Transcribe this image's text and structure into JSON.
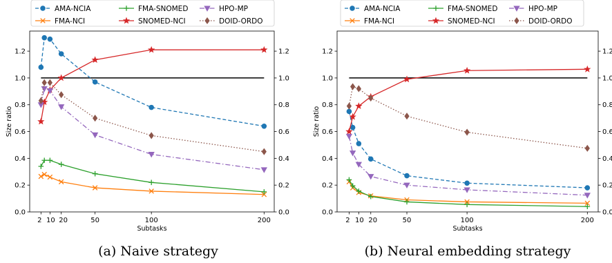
{
  "chart_data": [
    {
      "type": "line",
      "caption": "(a) Naive strategy",
      "xlabel": "Subtasks",
      "ylabel": "Size ratio",
      "xticks": [
        2,
        10,
        20,
        50,
        100,
        200
      ],
      "yticks": [
        "0.0",
        "0.2",
        "0.4",
        "0.6",
        "0.8",
        "1.0",
        "1.2"
      ],
      "xlim": [
        -8,
        209
      ],
      "ylim": [
        0.0,
        1.35
      ],
      "grid": false,
      "reference_line": 1.0,
      "legend_position": "top, outside",
      "x": [
        2,
        5,
        10,
        20,
        50,
        100,
        200
      ],
      "series": [
        {
          "name": "AMA-NCIA",
          "values": [
            1.08,
            1.3,
            1.29,
            1.18,
            0.97,
            0.78,
            0.64
          ]
        },
        {
          "name": "FMA-NCI",
          "values": [
            0.265,
            0.28,
            0.26,
            0.225,
            0.18,
            0.155,
            0.13
          ]
        },
        {
          "name": "FMA-SNOMED",
          "values": [
            0.34,
            0.385,
            0.385,
            0.355,
            0.285,
            0.22,
            0.15
          ]
        },
        {
          "name": "SNOMED-NCI",
          "values": [
            0.675,
            0.82,
            0.91,
            1.0,
            1.135,
            1.21,
            1.21
          ]
        },
        {
          "name": "HPO-MP",
          "values": [
            0.8,
            0.92,
            0.905,
            0.785,
            0.575,
            0.43,
            0.315
          ]
        },
        {
          "name": "DOID-ORDO",
          "values": [
            0.83,
            0.965,
            0.965,
            0.875,
            0.7,
            0.57,
            0.45
          ]
        }
      ]
    },
    {
      "type": "line",
      "caption": "(b) Neural embedding strategy",
      "xlabel": "Subtasks",
      "ylabel": "Size ratio",
      "xticks": [
        2,
        10,
        20,
        50,
        100,
        200
      ],
      "yticks": [
        "0.0",
        "0.2",
        "0.4",
        "0.6",
        "0.8",
        "1.0",
        "1.2"
      ],
      "xlim": [
        -8,
        209
      ],
      "ylim": [
        0.0,
        1.35
      ],
      "grid": false,
      "reference_line": 1.0,
      "legend_position": "top, outside",
      "x": [
        2,
        5,
        10,
        20,
        50,
        100,
        200
      ],
      "series": [
        {
          "name": "AMA-NCIA",
          "values": [
            0.75,
            0.63,
            0.51,
            0.395,
            0.27,
            0.215,
            0.18
          ]
        },
        {
          "name": "FMA-NCI",
          "values": [
            0.225,
            0.18,
            0.145,
            0.12,
            0.09,
            0.075,
            0.065
          ]
        },
        {
          "name": "FMA-SNOMED",
          "values": [
            0.24,
            0.195,
            0.155,
            0.115,
            0.075,
            0.055,
            0.04
          ]
        },
        {
          "name": "SNOMED-NCI",
          "values": [
            0.6,
            0.71,
            0.79,
            0.86,
            0.99,
            1.055,
            1.065
          ]
        },
        {
          "name": "HPO-MP",
          "values": [
            0.565,
            0.44,
            0.355,
            0.265,
            0.2,
            0.165,
            0.125
          ]
        },
        {
          "name": "DOID-ORDO",
          "values": [
            0.79,
            0.935,
            0.92,
            0.85,
            0.715,
            0.595,
            0.475
          ]
        }
      ]
    }
  ],
  "legend": [
    {
      "name": "AMA-NCIA",
      "color": "#1f77b4",
      "dash": "dashed",
      "marker": "circle"
    },
    {
      "name": "FMA-SNOMED",
      "color": "#2ca02c",
      "dash": "solid",
      "marker": "plus"
    },
    {
      "name": "HPO-MP",
      "color": "#9467bd",
      "dash": "dashdot",
      "marker": "triangle-down"
    },
    {
      "name": "FMA-NCI",
      "color": "#ff7f0e",
      "dash": "solid",
      "marker": "x"
    },
    {
      "name": "SNOMED-NCI",
      "color": "#d62728",
      "dash": "solid",
      "marker": "star"
    },
    {
      "name": "DOID-ORDO",
      "color": "#8c564b",
      "dash": "dotted",
      "marker": "diamond"
    }
  ],
  "reference_line_color": "#000000"
}
